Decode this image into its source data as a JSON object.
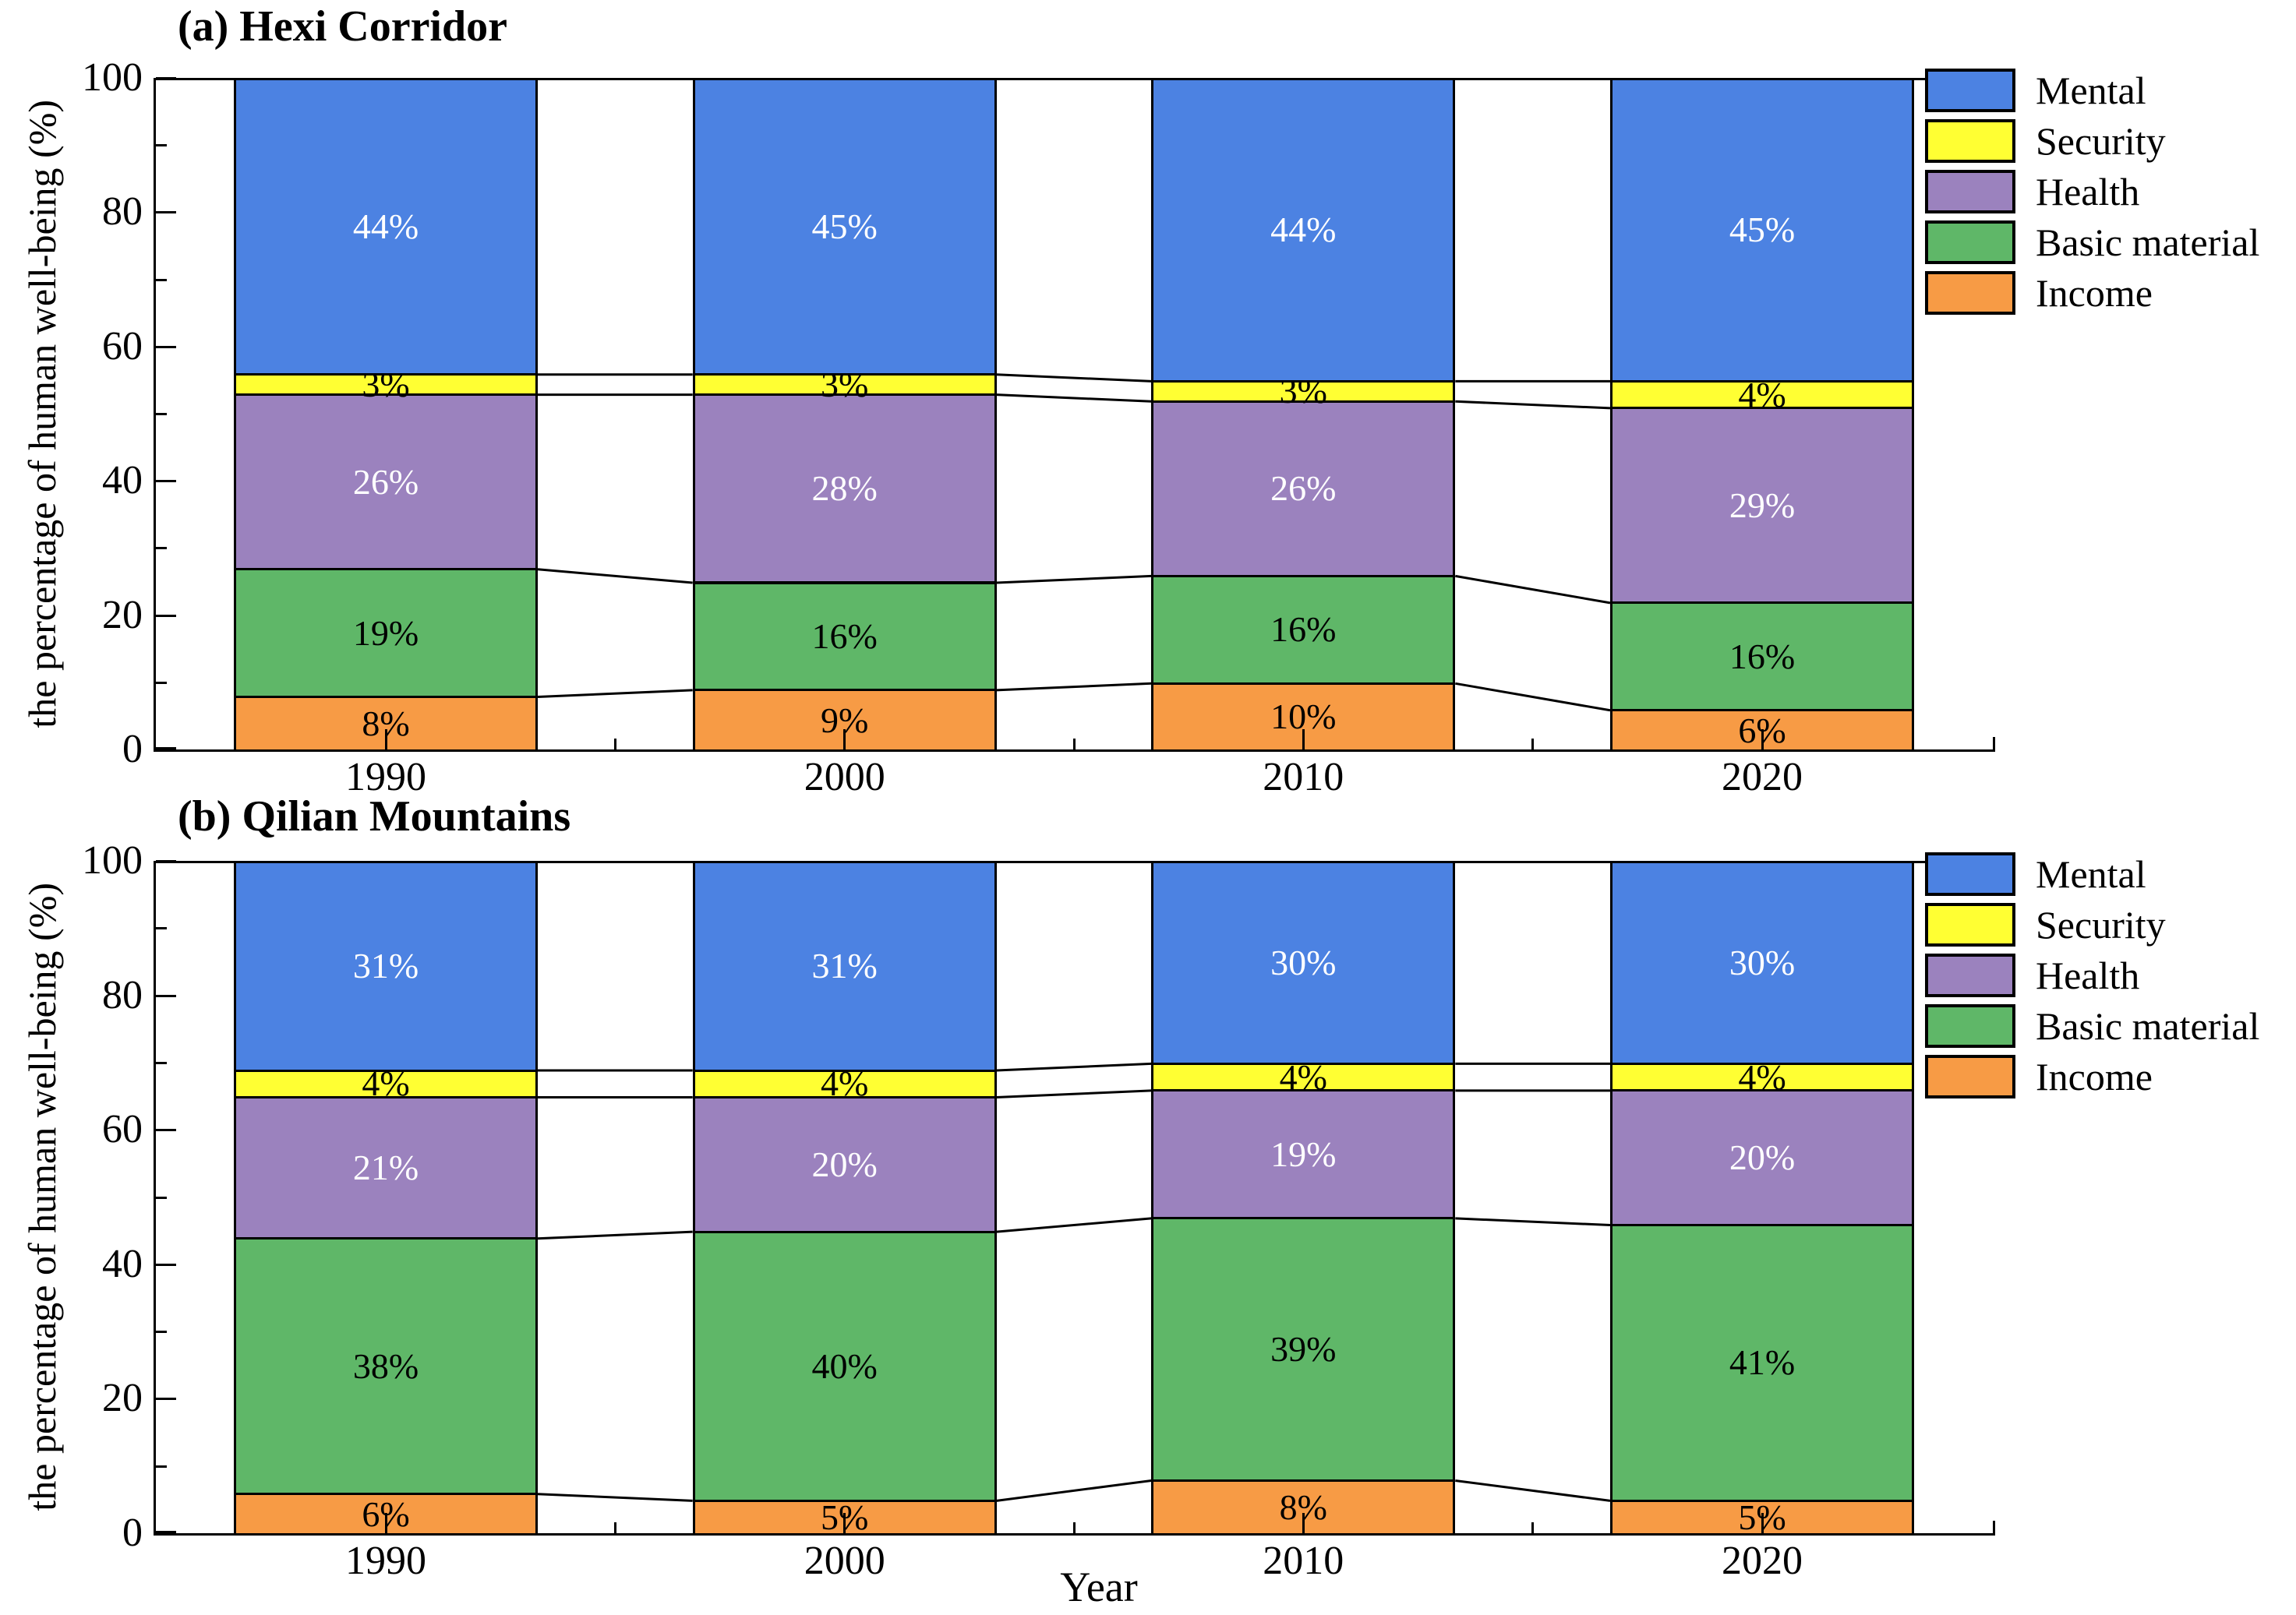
{
  "figure": {
    "x_axis_title": "Year",
    "y_axis_label": "the percentage of human well-being (%)",
    "y_ticks": [
      "0",
      "20",
      "40",
      "60",
      "80",
      "100"
    ],
    "categories": [
      "1990",
      "2000",
      "2010",
      "2020"
    ],
    "legend": [
      {
        "label": "Mental",
        "color": "#4C82E2"
      },
      {
        "label": "Security",
        "color": "#FFFF33"
      },
      {
        "label": "Health",
        "color": "#9B82BE"
      },
      {
        "label": "Basic material",
        "color": "#5FB768"
      },
      {
        "label": "Income",
        "color": "#F79B45"
      }
    ],
    "axis_color": "#000000",
    "background": "#FFFFFF"
  },
  "chart_data": [
    {
      "type": "bar",
      "stacked": true,
      "panel": "a",
      "title": "(a) Hexi Corridor",
      "categories": [
        "1990",
        "2000",
        "2010",
        "2020"
      ],
      "xlabel": "",
      "ylabel": "the percentage of human well-being (%)",
      "ylim": [
        0,
        100
      ],
      "grid": false,
      "legend_position": "top-right",
      "series": [
        {
          "name": "Income",
          "color": "#F79B45",
          "label_color": "#000000",
          "values": [
            8,
            9,
            10,
            6
          ]
        },
        {
          "name": "Basic material",
          "color": "#5FB768",
          "label_color": "#000000",
          "values": [
            19,
            16,
            16,
            16
          ]
        },
        {
          "name": "Health",
          "color": "#9B82BE",
          "label_color": "#FFFFFF",
          "values": [
            26,
            28,
            26,
            29
          ]
        },
        {
          "name": "Security",
          "color": "#FFFF33",
          "label_color": "#000000",
          "values": [
            3,
            3,
            3,
            4
          ]
        },
        {
          "name": "Mental",
          "color": "#4C82E2",
          "label_color": "#FFFFFF",
          "values": [
            44,
            45,
            44,
            45
          ]
        }
      ]
    },
    {
      "type": "bar",
      "stacked": true,
      "panel": "b",
      "title": "(b) Qilian Mountains",
      "categories": [
        "1990",
        "2000",
        "2010",
        "2020"
      ],
      "xlabel": "Year",
      "ylabel": "the percentage of human well-being (%)",
      "ylim": [
        0,
        100
      ],
      "grid": false,
      "legend_position": "top-right",
      "series": [
        {
          "name": "Income",
          "color": "#F79B45",
          "label_color": "#000000",
          "values": [
            6,
            5,
            8,
            5
          ]
        },
        {
          "name": "Basic material",
          "color": "#5FB768",
          "label_color": "#000000",
          "values": [
            38,
            40,
            39,
            41
          ]
        },
        {
          "name": "Health",
          "color": "#9B82BE",
          "label_color": "#FFFFFF",
          "values": [
            21,
            20,
            19,
            20
          ]
        },
        {
          "name": "Security",
          "color": "#FFFF33",
          "label_color": "#000000",
          "values": [
            4,
            4,
            4,
            4
          ]
        },
        {
          "name": "Mental",
          "color": "#4C82E2",
          "label_color": "#FFFFFF",
          "values": [
            31,
            31,
            30,
            30
          ]
        }
      ]
    }
  ]
}
